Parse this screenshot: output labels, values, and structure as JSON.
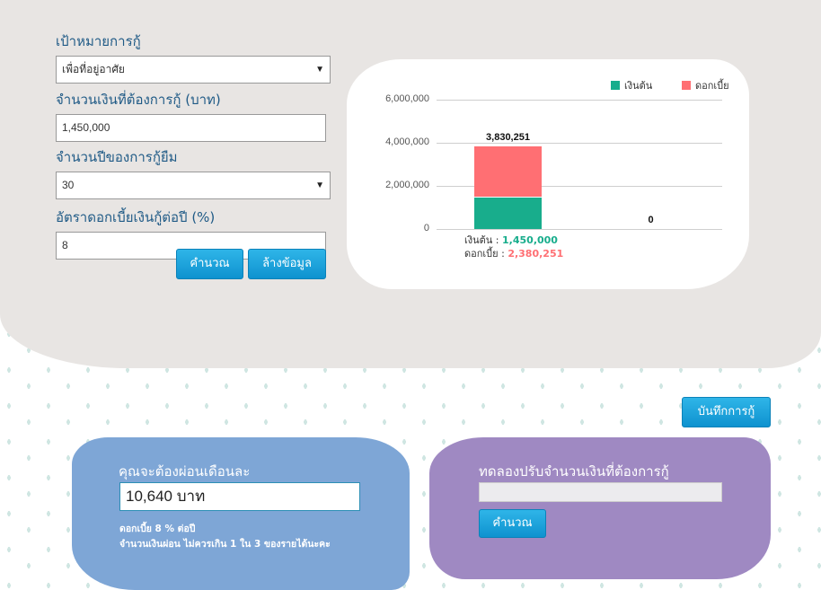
{
  "form": {
    "purpose_label": "เป้าหมายการกู้",
    "purpose_value": "เพื่อที่อยู่อาศัย",
    "amount_label": "จำนวนเงินที่ต้องการกู้ (บาท)",
    "amount_value": "1,450,000",
    "years_label": "จำนวนปีของการกู้ยืม",
    "years_value": "30",
    "rate_label": "อัตราดอกเบี้ยเงินกู้ต่อปี (%)",
    "rate_value": "8",
    "calculate_button": "คำนวณ",
    "clear_button": "ล้างข้อมูล",
    "dropdown_arrow": "▼"
  },
  "save_button": "บันทึกการกู้",
  "chart_data": {
    "type": "bar",
    "stacked": true,
    "categories": [
      "",
      ""
    ],
    "series": [
      {
        "name": "เงินต้น",
        "values": [
          1450000,
          0
        ],
        "color": "#18ad8c"
      },
      {
        "name": "ดอกเบี้ย",
        "values": [
          2380251,
          0
        ],
        "color": "#ff6f73"
      }
    ],
    "totals": [
      "3,830,251",
      "0"
    ],
    "yticks": [
      "0",
      "2,000,000",
      "4,000,000",
      "6,000,000"
    ],
    "ylim": [
      0,
      6000000
    ],
    "grid": true,
    "legend": "top-right",
    "tooltip": {
      "principal_label": "เงินต้น :",
      "principal_value": "1,450,000",
      "interest_label": "ดอกเบี้ย :",
      "interest_value": "2,380,251"
    }
  },
  "monthly": {
    "title": "คุณจะต้องผ่อนเดือนละ",
    "amount": "10,640",
    "unit": "บาท",
    "note1": "ดอกเบี้ย 8 % ต่อปี",
    "note2": "จำนวนเงินผ่อน ไม่ควรเกิน 1 ใน 3 ของรายได้นะคะ"
  },
  "adjust": {
    "title": "ทดลองปรับจำนวนเงินที่ต้องการกู้",
    "input_value": "",
    "button": "คำนวณ"
  }
}
